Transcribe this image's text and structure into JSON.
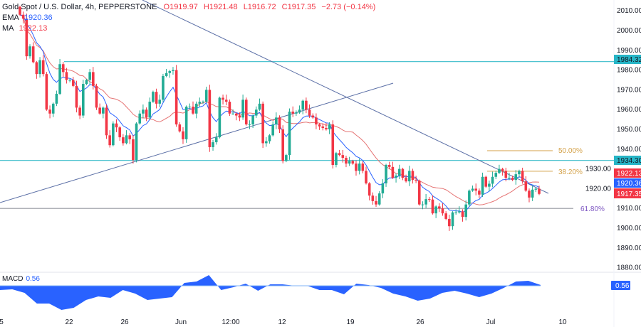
{
  "legend": {
    "symbol": "Gold Spot / U.S. Dollar, 4h, PEPPERSTONE",
    "open": "O1919.97",
    "high": "H1921.48",
    "low": "L1916.72",
    "close": "C1917.35",
    "change": "−2.73 (−0.14%)",
    "ema_label": "EMA",
    "ema_value": "1920.36",
    "ma_label": "MA",
    "ma_value": "1922.13"
  },
  "macd_legend": {
    "label": "MACD",
    "value": "0.56"
  },
  "price_tags": {
    "resistance_1": "1984.32",
    "resistance_2": "1934.30",
    "ma": "1922.13",
    "ema": "1920.36",
    "last": "1917.35",
    "macd": "0.56"
  },
  "fib_labels": {
    "fib_50": "50.00%",
    "fib_382": "38.20%",
    "fib_618": "61.80%"
  },
  "colors": {
    "up": "#22ab94",
    "down": "#f23645",
    "ema": "#2962ff",
    "ma": "#e57373",
    "level": "#4fc3d0",
    "trendline": "#5b6fa6",
    "fib": "#d4a24a",
    "fib_618": "#9598a1",
    "macd": "#2962ff"
  },
  "chart_data": {
    "type": "candlestick",
    "title": "Gold Spot / U.S. Dollar, 4h, PEPPERSTONE",
    "ylim": [
      1877,
      2013
    ],
    "y_ticks": [
      "2010.00",
      "2000.00",
      "1990.00",
      "1980.00",
      "1970.00",
      "1960.00",
      "1950.00",
      "1940.00",
      "1930.00",
      "1920.00",
      "1910.00",
      "1900.00",
      "1890.00",
      "1880.00"
    ],
    "x_ticks": [
      "5",
      "22",
      "26",
      "Jun",
      "12:00",
      "12",
      "19",
      "26",
      "Jul",
      "10"
    ],
    "last_candle": {
      "open": 1919.97,
      "high": 1921.48,
      "low": 1916.72,
      "close": 1917.35
    },
    "closes": [
      2008,
      2006,
      1987,
      1992,
      1984,
      1978,
      1985,
      1978,
      1960,
      1958,
      1963,
      1968,
      1983,
      1979,
      1975,
      1975,
      1972,
      1961,
      1957,
      1973,
      1975,
      1979,
      1972,
      1961,
      1958,
      1961,
      1947,
      1942,
      1953,
      1951,
      1946,
      1943,
      1947,
      1945,
      1934.5,
      1953,
      1958,
      1960,
      1956,
      1964,
      1969,
      1963,
      1965,
      1977,
      1978.5,
      1979.5,
      1980,
      1952.5,
      1949,
      1945,
      1961.5,
      1961.5,
      1958,
      1963,
      1964,
      1964,
      1970,
      1941,
      1943.5,
      1946,
      1966,
      1965,
      1964,
      1958,
      1958,
      1957,
      1956,
      1965,
      1952.5,
      1952.5,
      1957,
      1960,
      1963,
      1943,
      1944,
      1947,
      1952.5,
      1956,
      1950,
      1934,
      1937,
      1959,
      1958,
      1958.5,
      1960,
      1964.5,
      1960,
      1957,
      1956,
      1952.5,
      1951.5,
      1950.7,
      1950,
      1952.5,
      1932,
      1938,
      1937,
      1935.6,
      1932.7,
      1934,
      1932.7,
      1929,
      1932.7,
      1929,
      1922.7,
      1916.5,
      1913.7,
      1912,
      1917.6,
      1922.7,
      1932,
      1931,
      1925.5,
      1926.6,
      1930,
      1925.5,
      1923.7,
      1929,
      1924.4,
      1924,
      1912,
      1912,
      1914.7,
      1914.5,
      1907.5,
      1911,
      1910,
      1907.5,
      1904.7,
      1901,
      1908,
      1908,
      1908.5,
      1905.7,
      1912,
      1919,
      1920,
      1919,
      1917,
      1926,
      1921,
      1922.5,
      1926,
      1928,
      1930,
      1929,
      1925.5,
      1925.5,
      1924.4,
      1927.3,
      1929,
      1923.7,
      1919,
      1915.5,
      1919.5,
      1919.97,
      1917.35
    ],
    "levels": {
      "resistance_1": 1984.32,
      "resistance_2": 1934.3,
      "fib_50": 1939.2,
      "fib_382": 1928.8,
      "fib_618": 1910
    },
    "indicators": {
      "ema_last": 1920.36,
      "ma_last": 1922.13
    },
    "macd": {
      "label": "MACD",
      "last": 0.56,
      "values": [
        -3,
        -2.5,
        -5,
        -12.5,
        -12.5,
        -17,
        -15.5,
        -10,
        -7.5,
        -8.5,
        -3,
        -5.5,
        -10,
        -9,
        -8,
        2,
        3,
        7.5,
        -3,
        -1,
        1.5,
        -3.5,
        1,
        1,
        0,
        0,
        -3,
        -3,
        -6,
        1.5,
        0.5,
        -1.5,
        -5.5,
        -7.5,
        -10.5,
        -9,
        -5,
        -3.5,
        -5.5,
        -8,
        -5.5,
        -1.5,
        3,
        3.5,
        0.56
      ]
    }
  }
}
